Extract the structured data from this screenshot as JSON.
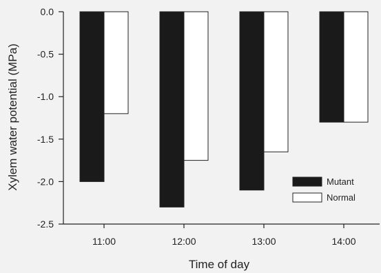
{
  "chart_data": {
    "type": "bar",
    "title": "",
    "xlabel": "Time of day",
    "ylabel": "Xylem water potential (MPa)",
    "categories": [
      "11:00",
      "12:00",
      "13:00",
      "14:00"
    ],
    "ylim": [
      -2.5,
      0.0
    ],
    "yticks": [
      "0.0",
      "-0.5",
      "-1.0",
      "-1.5",
      "-2.0",
      "-2.5"
    ],
    "grid": false,
    "legend_position": "bottom-right",
    "series": [
      {
        "name": "Mutant",
        "values": [
          -2.0,
          -2.3,
          -2.1,
          -1.3
        ],
        "color": "#1a1a1a"
      },
      {
        "name": "Normal",
        "values": [
          -1.2,
          -1.75,
          -1.65,
          -1.3
        ],
        "color": "#ffffff"
      }
    ]
  }
}
